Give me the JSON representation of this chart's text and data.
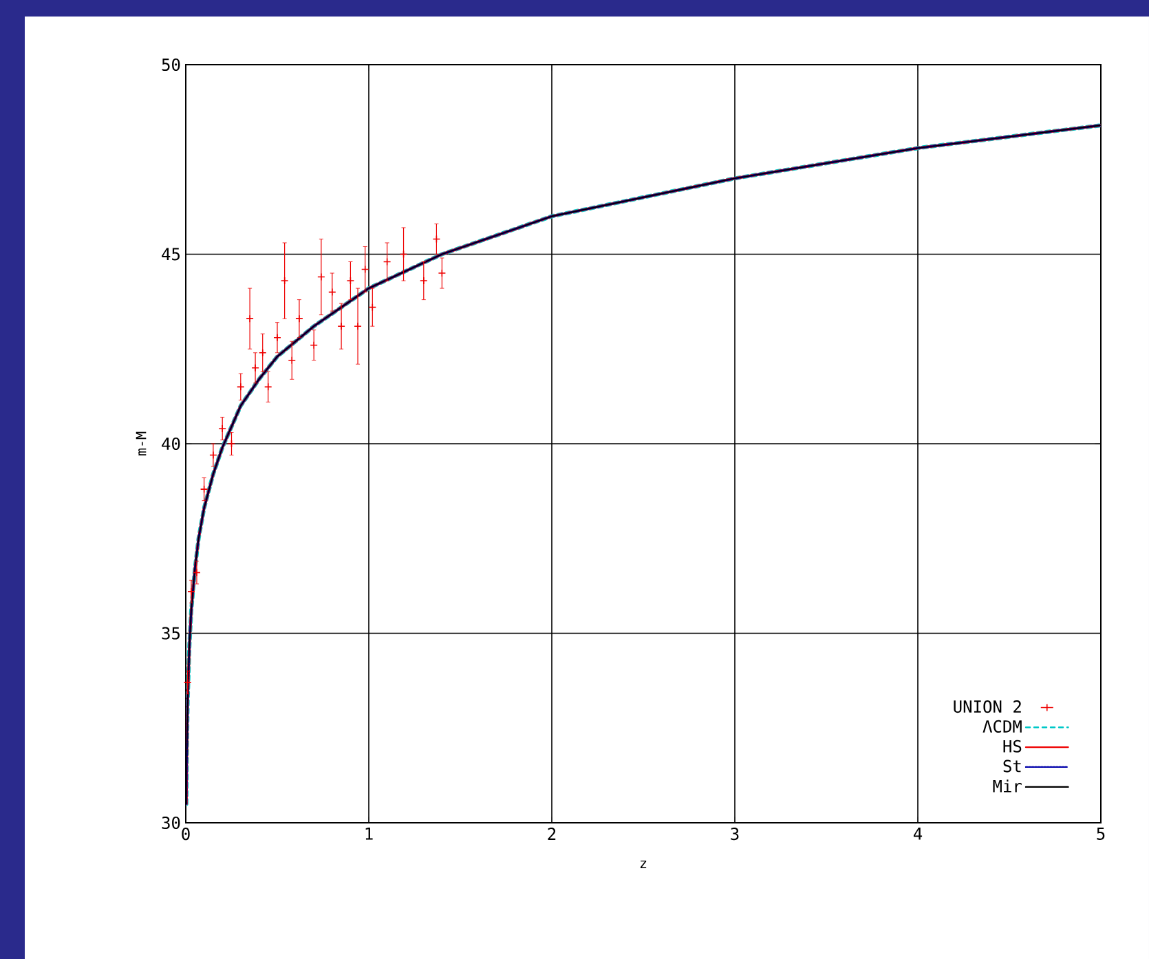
{
  "chart_data": {
    "type": "line",
    "xlabel": "z",
    "ylabel": "m-M",
    "xlim": [
      0,
      5
    ],
    "ylim": [
      30,
      50
    ],
    "xticks": [
      0,
      1,
      2,
      3,
      4,
      5
    ],
    "yticks": [
      30,
      35,
      40,
      45,
      50
    ],
    "grid": true,
    "legend": "bottom right",
    "series": [
      {
        "name": "UNION 2",
        "type": "scatter",
        "color": "#ee0000",
        "marker": "cross",
        "x": [
          0.01,
          0.03,
          0.06,
          0.1,
          0.15,
          0.2,
          0.25,
          0.3,
          0.35,
          0.38,
          0.42,
          0.45,
          0.5,
          0.54,
          0.58,
          0.62,
          0.7,
          0.74,
          0.8,
          0.85,
          0.9,
          0.94,
          0.98,
          1.02,
          1.1,
          1.19,
          1.3,
          1.37,
          1.4
        ],
        "values": [
          33.7,
          36.1,
          36.6,
          38.8,
          39.7,
          40.4,
          40.0,
          41.5,
          43.3,
          42.0,
          42.4,
          41.5,
          42.8,
          44.3,
          42.2,
          43.3,
          42.6,
          44.4,
          44.0,
          43.1,
          44.3,
          43.1,
          44.6,
          43.6,
          44.8,
          45.0,
          44.3,
          45.4,
          44.5
        ],
        "errors": [
          0.3,
          0.3,
          0.3,
          0.3,
          0.3,
          0.3,
          0.3,
          0.35,
          0.8,
          0.4,
          0.5,
          0.4,
          0.4,
          1.0,
          0.5,
          0.5,
          0.4,
          1.0,
          0.5,
          0.6,
          0.5,
          1.0,
          0.6,
          0.5,
          0.5,
          0.7,
          0.5,
          0.4,
          0.4
        ]
      },
      {
        "name": "ΛCDM",
        "type": "line",
        "color": "#00c8c8",
        "line_style": "dashed",
        "x": [
          0.003,
          0.005,
          0.01,
          0.02,
          0.03,
          0.05,
          0.07,
          0.1,
          0.15,
          0.2,
          0.3,
          0.4,
          0.5,
          0.7,
          1,
          1.4,
          2,
          2.5,
          3,
          3.5,
          4,
          4.5,
          5
        ],
        "values": [
          30.5,
          31.6,
          33.2,
          34.7,
          35.6,
          36.7,
          37.5,
          38.3,
          39.2,
          39.9,
          41.0,
          41.7,
          42.3,
          43.1,
          44.1,
          45.0,
          46.0,
          46.5,
          47.0,
          47.4,
          47.8,
          48.1,
          48.4
        ]
      },
      {
        "name": "HS",
        "type": "line",
        "color": "#ee0000",
        "line_style": "solid",
        "x": [
          0.003,
          0.005,
          0.01,
          0.02,
          0.03,
          0.05,
          0.07,
          0.1,
          0.15,
          0.2,
          0.3,
          0.4,
          0.5,
          0.7,
          1,
          1.4,
          2,
          2.5,
          3,
          3.5,
          4,
          4.5,
          5
        ],
        "values": [
          30.5,
          31.6,
          33.2,
          34.7,
          35.6,
          36.7,
          37.5,
          38.3,
          39.2,
          39.9,
          41.0,
          41.7,
          42.3,
          43.1,
          44.1,
          45.0,
          46.0,
          46.5,
          47.0,
          47.4,
          47.8,
          48.1,
          48.4
        ]
      },
      {
        "name": "St",
        "type": "line",
        "color": "#0000aa",
        "line_style": "dotted",
        "x": [
          0.003,
          0.005,
          0.01,
          0.02,
          0.03,
          0.05,
          0.07,
          0.1,
          0.15,
          0.2,
          0.3,
          0.4,
          0.5,
          0.7,
          1,
          1.4,
          2,
          2.5,
          3,
          3.5,
          4,
          4.5,
          5
        ],
        "values": [
          30.5,
          31.6,
          33.2,
          34.7,
          35.6,
          36.7,
          37.5,
          38.3,
          39.2,
          39.9,
          41.0,
          41.7,
          42.3,
          43.1,
          44.1,
          45.0,
          46.0,
          46.5,
          47.0,
          47.4,
          47.8,
          48.1,
          48.4
        ]
      },
      {
        "name": "Mir",
        "type": "line",
        "color": "#000000",
        "line_style": "solid",
        "x": [
          0.003,
          0.005,
          0.01,
          0.02,
          0.03,
          0.05,
          0.07,
          0.1,
          0.15,
          0.2,
          0.3,
          0.4,
          0.5,
          0.7,
          1,
          1.4,
          2,
          2.5,
          3,
          3.5,
          4,
          4.5,
          5
        ],
        "values": [
          30.5,
          31.6,
          33.2,
          34.7,
          35.6,
          36.7,
          37.5,
          38.3,
          39.2,
          39.9,
          41.0,
          41.7,
          42.3,
          43.1,
          44.1,
          45.0,
          46.0,
          46.5,
          47.0,
          47.4,
          47.8,
          48.1,
          48.4
        ]
      }
    ]
  }
}
